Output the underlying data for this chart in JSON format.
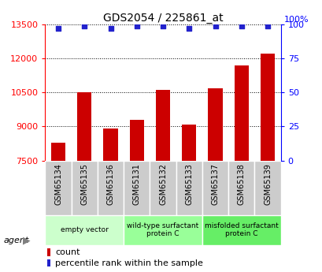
{
  "title": "GDS2054 / 225861_at",
  "samples": [
    "GSM65134",
    "GSM65135",
    "GSM65136",
    "GSM65131",
    "GSM65132",
    "GSM65133",
    "GSM65137",
    "GSM65138",
    "GSM65139"
  ],
  "counts": [
    8300,
    10500,
    8900,
    9300,
    10600,
    9100,
    10700,
    11700,
    12200
  ],
  "percentiles": [
    97,
    99,
    97,
    99,
    99,
    97,
    99,
    99,
    99
  ],
  "ylim_left": [
    7500,
    13500
  ],
  "ylim_right": [
    0,
    100
  ],
  "yticks_left": [
    7500,
    9000,
    10500,
    12000,
    13500
  ],
  "yticks_right": [
    0,
    25,
    50,
    75,
    100
  ],
  "bar_color": "#cc0000",
  "dot_color": "#2222cc",
  "groups": [
    {
      "label": "empty vector",
      "start": 0,
      "end": 3,
      "color": "#ccffcc"
    },
    {
      "label": "wild-type surfactant\nprotein C",
      "start": 3,
      "end": 6,
      "color": "#99ff99"
    },
    {
      "label": "misfolded surfactant\nprotein C",
      "start": 6,
      "end": 9,
      "color": "#66ee66"
    }
  ],
  "legend_count_label": "count",
  "legend_pct_label": "percentile rank within the sample",
  "sample_bg_color": "#cccccc",
  "plot_bg": "#ffffff",
  "right_axis_label": "100%"
}
